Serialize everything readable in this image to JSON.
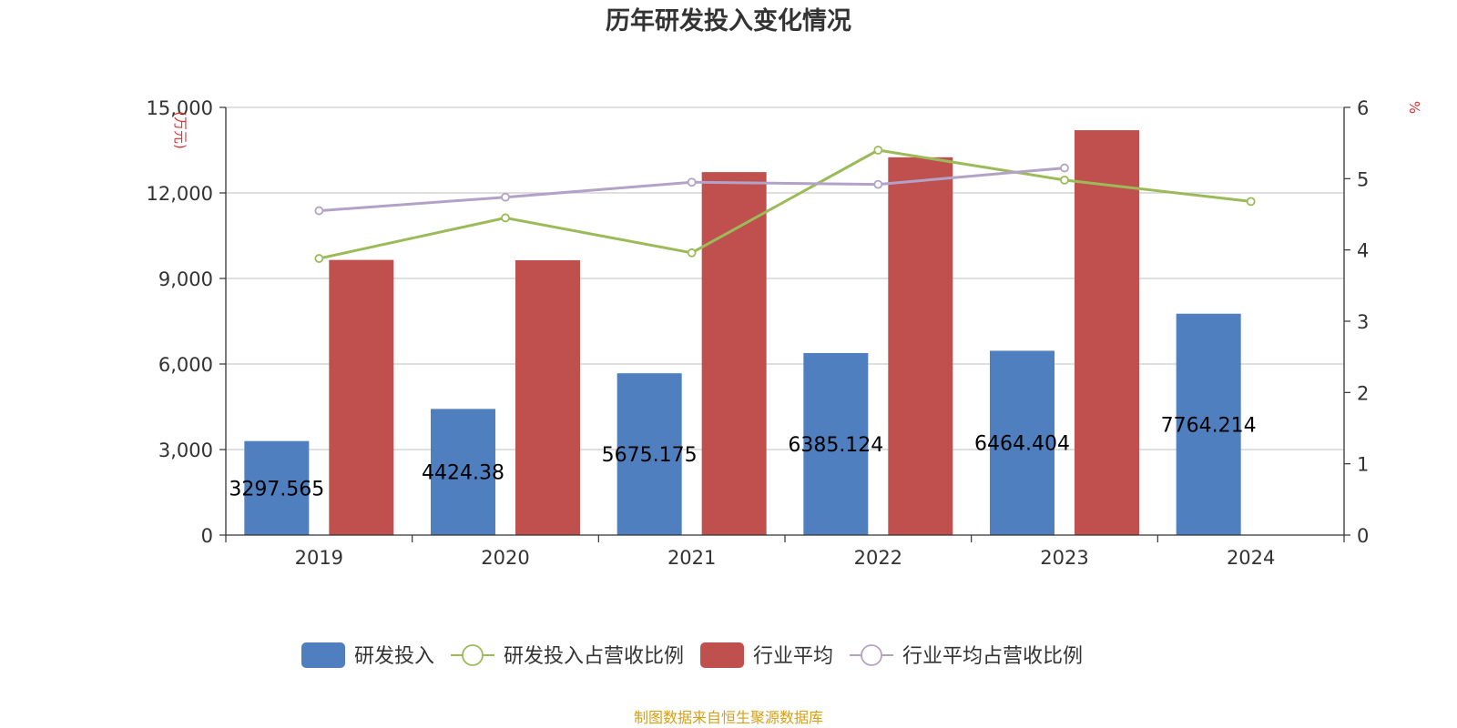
{
  "chart_data": {
    "type": "bar",
    "title": "历年研发投入变化情况",
    "categories": [
      "2019",
      "2020",
      "2021",
      "2022",
      "2023",
      "2024"
    ],
    "y_left": {
      "label": "万元",
      "ylim": [
        0,
        15000
      ],
      "ticks": [
        "0",
        "3,000",
        "6,000",
        "9,000",
        "12,000",
        "15,000"
      ],
      "tick_values": [
        0,
        3000,
        6000,
        9000,
        12000,
        15000
      ]
    },
    "y_right": {
      "label": "%",
      "ylim": [
        0,
        6
      ],
      "ticks": [
        "0",
        "1",
        "2",
        "3",
        "4",
        "5",
        "6"
      ],
      "tick_values": [
        0,
        1,
        2,
        3,
        4,
        5,
        6
      ]
    },
    "grid": true,
    "legend_position": "bottom",
    "series": [
      {
        "name": "研发投入",
        "type": "bar",
        "axis": "left",
        "color": "#4f7fbe",
        "values": [
          3297.565,
          4424.38,
          5675.175,
          6385.124,
          6464.404,
          7764.214
        ],
        "labels": [
          "3297.565",
          "4424.38",
          "5675.175",
          "6385.124",
          "6464.404",
          "7764.214"
        ]
      },
      {
        "name": "研发投入占营收比例",
        "type": "line",
        "axis": "right",
        "color": "#9bbb59",
        "values": [
          3.88,
          4.45,
          3.96,
          5.4,
          4.98,
          4.68
        ]
      },
      {
        "name": "行业平均",
        "type": "bar",
        "axis": "left",
        "color": "#c0504d",
        "values": [
          9650,
          9640,
          12730,
          13250,
          14200,
          null
        ]
      },
      {
        "name": "行业平均占营收比例",
        "type": "line",
        "axis": "right",
        "color": "#b3a2c7",
        "values": [
          4.55,
          4.74,
          4.95,
          4.92,
          5.15,
          null
        ]
      }
    ]
  },
  "source_note": "制图数据来自恒生聚源数据库"
}
